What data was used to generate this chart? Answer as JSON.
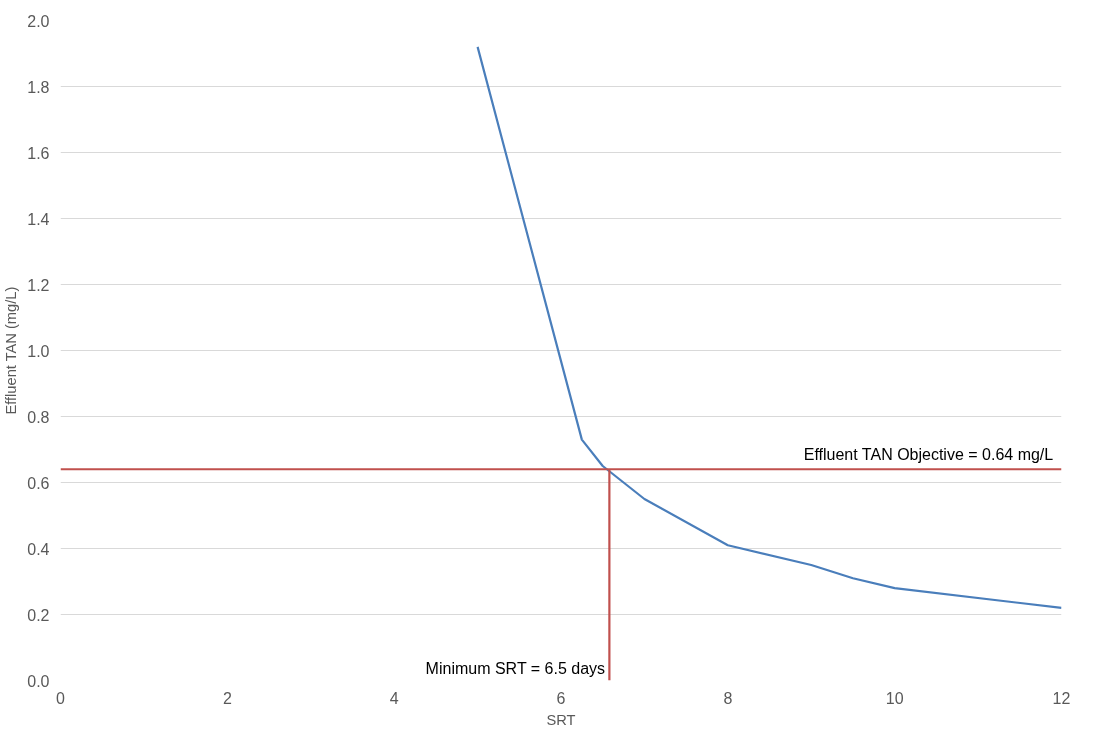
{
  "chart_data": {
    "type": "line",
    "xlabel": "SRT",
    "ylabel": "Effluent TAN (mg/L)",
    "xlim": [
      0,
      12
    ],
    "xticks": [
      0,
      2,
      4,
      6,
      8,
      10,
      12
    ],
    "ylim": [
      0,
      2
    ],
    "yticks": [
      {
        "value": 0,
        "label": "0.0"
      },
      {
        "value": 0.2,
        "label": "0.2"
      },
      {
        "value": 0.4,
        "label": "0.4"
      },
      {
        "value": 0.6,
        "label": "0.6"
      },
      {
        "value": 0.8,
        "label": "0.8"
      },
      {
        "value": 1,
        "label": "1.0"
      },
      {
        "value": 1.2,
        "label": "1.2"
      },
      {
        "value": 1.4,
        "label": "1.4"
      },
      {
        "value": 1.6,
        "label": "1.6"
      },
      {
        "value": 1.8,
        "label": "1.8"
      },
      {
        "value": 2,
        "label": "2.0"
      }
    ],
    "grid": "y",
    "series": [
      {
        "color": "#4a7ebb",
        "x": [
          5,
          6.25,
          6.5,
          6.75,
          7,
          8,
          9,
          9.5,
          10,
          12
        ],
        "values": [
          1.92,
          0.73,
          0.65,
          0.6,
          0.55,
          0.41,
          0.35,
          0.31,
          0.28,
          0.22
        ]
      },
      {
        "color": "#c0504d",
        "x": [
          6.58,
          6.58
        ],
        "values": [
          0,
          0.64
        ]
      }
    ],
    "ref_lines": [
      {
        "axis": "y",
        "value": 0.64,
        "label": "Effluent TAN Objective = 0.64 mg/L",
        "color": "#c0504d"
      }
    ],
    "annotations": [
      {
        "text": "Minimum SRT = 6.5 days",
        "x": 6.58,
        "y": 0
      }
    ]
  }
}
